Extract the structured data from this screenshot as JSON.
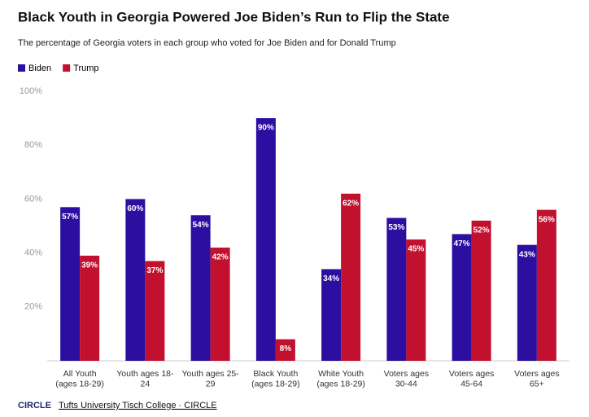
{
  "chart_data": {
    "type": "bar",
    "title": "Black Youth in Georgia Powered Joe Biden’s Run to Flip the State",
    "subtitle": "The percentage of Georgia voters in each group who voted for Joe Biden and for Donald Trump",
    "categories": [
      "All Youth\n(ages 18-29)",
      "Youth ages 18-\n24",
      "Youth ages 25-\n29",
      "Black Youth\n(ages 18-29)",
      "White Youth\n(ages 18-29)",
      "Voters ages\n30-44",
      "Voters ages\n45-64",
      "Voters ages\n65+"
    ],
    "series": [
      {
        "name": "Biden",
        "color": "#2c0ea0",
        "values": [
          57,
          60,
          54,
          90,
          34,
          53,
          47,
          43
        ],
        "value_labels": [
          "57%",
          "60%",
          "54%",
          "90%",
          "34%",
          "53%",
          "47%",
          "43%"
        ]
      },
      {
        "name": "Trump",
        "color": "#c2102f",
        "values": [
          39,
          37,
          42,
          8,
          62,
          45,
          52,
          56
        ],
        "value_labels": [
          "39%",
          "37%",
          "42%",
          "8%",
          "62%",
          "45%",
          "52%",
          "56%"
        ]
      }
    ],
    "ylim": [
      0,
      100
    ],
    "yticks": [
      {
        "value": 20,
        "label": "20%"
      },
      {
        "value": 40,
        "label": "40%"
      },
      {
        "value": 60,
        "label": "60%"
      },
      {
        "value": 80,
        "label": "80%"
      },
      {
        "value": 100,
        "label": "100%"
      }
    ],
    "legend": "top-left",
    "footer": {
      "logo": "CIRCLE",
      "credit": "Tufts University Tisch College · CIRCLE"
    }
  }
}
